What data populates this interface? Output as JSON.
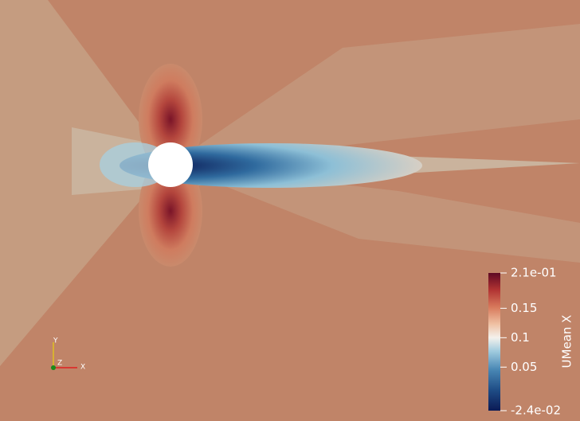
{
  "colorbar": {
    "title": "UMean X",
    "range": [
      -0.024,
      0.21
    ],
    "ticks": [
      {
        "value": 0.21,
        "label": "2.1e-01"
      },
      0.15,
      0.1,
      0.05,
      {
        "value": -0.024,
        "label": "-2.4e-02"
      }
    ]
  },
  "axes_triad": {
    "x": "X",
    "y": "Y",
    "z": "Z"
  }
}
